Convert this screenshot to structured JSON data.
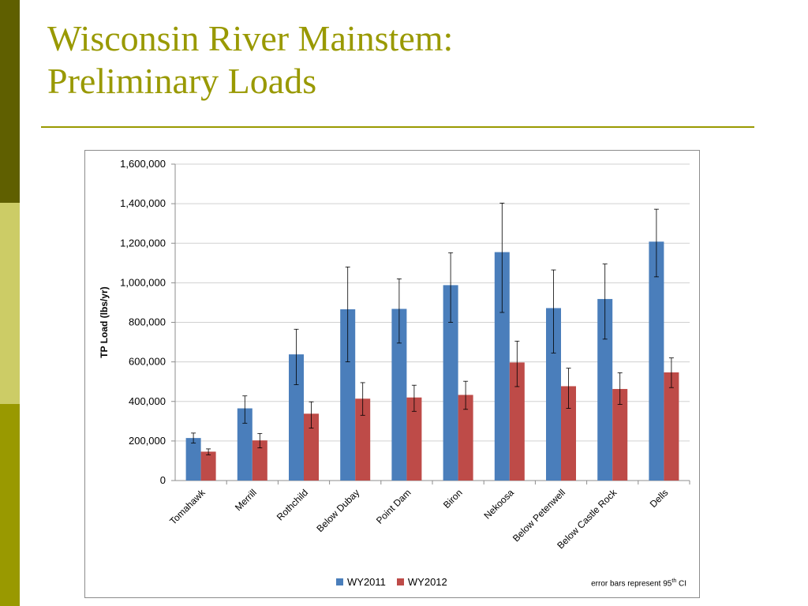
{
  "slide": {
    "title_line1": "Wisconsin River Mainstem:",
    "title_line2": "Preliminary Loads",
    "accent_colors": [
      "#5f5f00",
      "#cccc66",
      "#999900"
    ]
  },
  "note": {
    "prefix": "error bars represent 95",
    "sup": "th",
    "suffix": " CI"
  },
  "chart_data": {
    "type": "bar",
    "title": "",
    "xlabel": "",
    "ylabel": "TP Load (lbs/yr)",
    "ylim": [
      0,
      1600000
    ],
    "yticks": [
      0,
      200000,
      400000,
      600000,
      800000,
      1000000,
      1200000,
      1400000,
      1600000
    ],
    "ytick_labels": [
      "0",
      "200,000",
      "400,000",
      "600,000",
      "800,000",
      "1,000,000",
      "1,200,000",
      "1,400,000",
      "1,600,000"
    ],
    "grid": true,
    "legend_position": "bottom",
    "categories": [
      "Tomahawk",
      "Merrill",
      "Rothchild",
      "Below Dubay",
      "Point Dam",
      "Biron",
      "Nekoosa",
      "Below Petenwell",
      "Below Castle Rock",
      "Dells"
    ],
    "series": [
      {
        "name": "WY2011",
        "color": "#4a7ebb",
        "values": [
          215000,
          365000,
          638000,
          866000,
          868000,
          988000,
          1155000,
          872000,
          918000,
          1208000
        ],
        "error_low": [
          190000,
          290000,
          485000,
          600000,
          695000,
          800000,
          850000,
          645000,
          715000,
          1030000
        ],
        "error_high": [
          240000,
          428000,
          765000,
          1080000,
          1020000,
          1152000,
          1403000,
          1065000,
          1095000,
          1372000
        ]
      },
      {
        "name": "WY2012",
        "color": "#be4b48",
        "values": [
          146000,
          203000,
          338000,
          414000,
          420000,
          433000,
          597000,
          477000,
          463000,
          547000
        ],
        "error_low": [
          130000,
          165000,
          265000,
          330000,
          350000,
          360000,
          475000,
          365000,
          385000,
          470000
        ],
        "error_high": [
          160000,
          238000,
          398000,
          495000,
          482000,
          502000,
          705000,
          568000,
          545000,
          620000
        ]
      }
    ]
  }
}
